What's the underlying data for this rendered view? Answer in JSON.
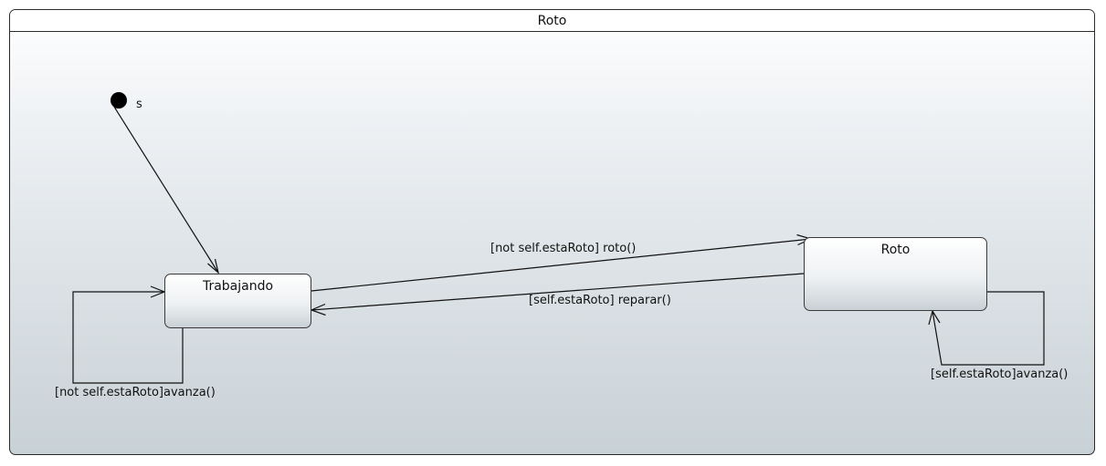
{
  "frame": {
    "title": "Roto"
  },
  "initial": {
    "label": "s"
  },
  "states": {
    "trabajando": "Trabajando",
    "roto": "Roto"
  },
  "transitions": {
    "initial_to_trabajando": "",
    "trabajando_to_roto": "[not self.estaRoto] roto()",
    "roto_to_trabajando": "[self.estaRoto] reparar()",
    "trabajando_self": "[not self.estaRoto]avanza()",
    "roto_self": "[self.estaRoto]avanza()"
  }
}
